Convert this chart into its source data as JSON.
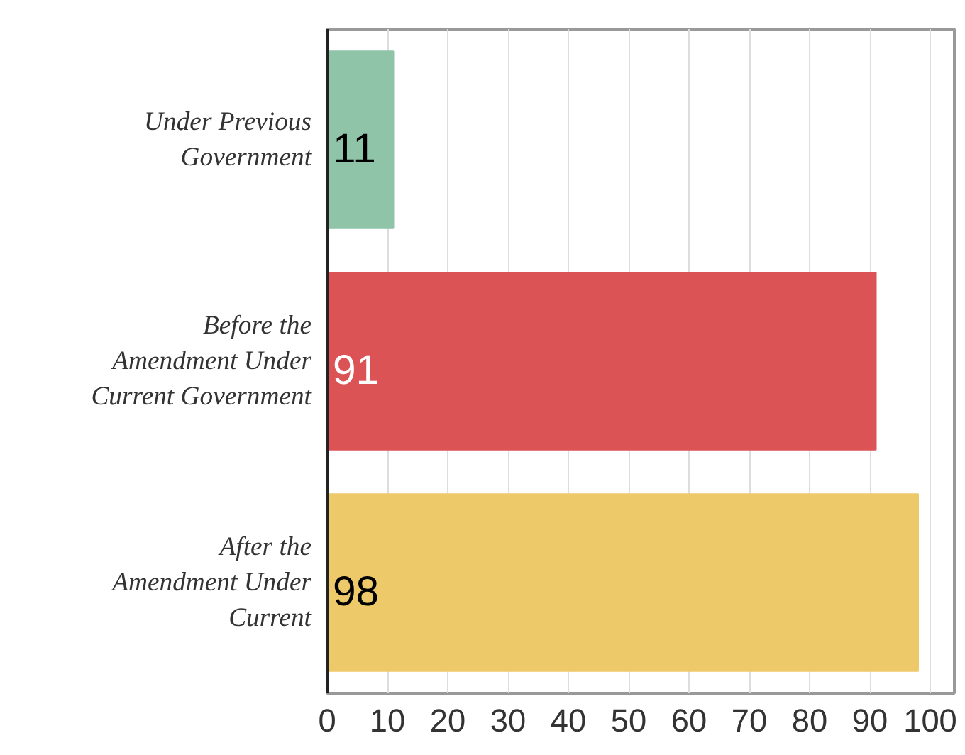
{
  "chart_data": {
    "type": "bar",
    "orientation": "horizontal",
    "categories": [
      "Under Previous Government",
      "Before the Amendment Under Current Government",
      "After the Amendment Under Current"
    ],
    "values": [
      11,
      91,
      98
    ],
    "colors": [
      "#8fc4a9",
      "#dc5355",
      "#eec96a"
    ],
    "xlim": [
      0,
      104
    ],
    "xticks": [
      0,
      10,
      20,
      30,
      40,
      50,
      60,
      70,
      80,
      90,
      100
    ],
    "grid": "x",
    "data_labels": true
  }
}
